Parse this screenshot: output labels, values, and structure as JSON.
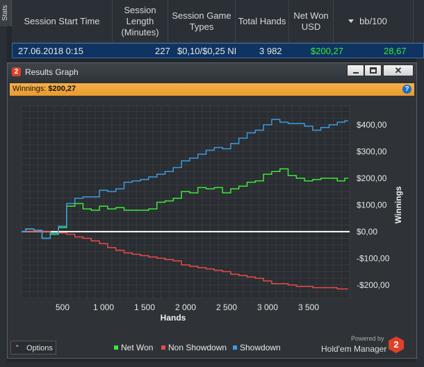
{
  "sidebar_tab": "Stats",
  "table": {
    "columns": [
      {
        "label": "Session Start Time"
      },
      {
        "label": "Session Length (Minutes)"
      },
      {
        "label": "Session Game Types"
      },
      {
        "label": "Total Hands"
      },
      {
        "label": "Net Won USD"
      },
      {
        "label": "bb/100"
      }
    ],
    "selected_row": {
      "start_time": "27.06.2018 0:15",
      "length": "227",
      "game_types": "$0,10/$0,25 NI",
      "total_hands": "3 982",
      "net_won": "$200,27",
      "bb100": "28,67"
    }
  },
  "dialog": {
    "title": "Results Graph",
    "badge": "2",
    "close_glyph": "✕",
    "winnings_label": "Winnings:",
    "winnings_value": "$200,27",
    "help": "?",
    "options_label": "Options",
    "options_chevron": "⌃",
    "powered_by": "Powered by",
    "brand": "Hold'em Manager",
    "brand_badge": "2"
  },
  "colors": {
    "net_won": "#3ee83a",
    "non_showdown": "#e84b4b",
    "showdown": "#3b9be0",
    "zero_line": "#ffffff",
    "accent": "#f0a43a"
  },
  "chart_data": {
    "type": "line",
    "xlabel": "Hands",
    "ylabel": "Winnings",
    "xlim": [
      0,
      4000
    ],
    "ylim": [
      -250,
      470
    ],
    "x_ticks": [
      500,
      1000,
      1500,
      2000,
      2500,
      3000,
      3500
    ],
    "x_tick_labels": [
      "500",
      "1 000",
      "1 500",
      "2 000",
      "2 500",
      "3 000",
      "3 500"
    ],
    "y_ticks": [
      400,
      300,
      200,
      100,
      0,
      -100,
      -200
    ],
    "y_tick_labels": [
      "$400,00",
      "$300,00",
      "$200,00",
      "$100,00",
      "$0,00",
      "-$100,00",
      "-$200,00"
    ],
    "legend_placement": "bottom",
    "grid": true,
    "x": [
      0,
      100,
      200,
      300,
      400,
      500,
      600,
      700,
      800,
      900,
      1000,
      1100,
      1200,
      1300,
      1400,
      1500,
      1600,
      1700,
      1800,
      1900,
      2000,
      2100,
      2200,
      2300,
      2400,
      2500,
      2600,
      2700,
      2800,
      2900,
      3000,
      3100,
      3200,
      3300,
      3400,
      3500,
      3600,
      3700,
      3800,
      3900,
      3982
    ],
    "series": [
      {
        "name": "Net Won",
        "values": [
          0,
          10,
          5,
          -25,
          -10,
          15,
          95,
          105,
          85,
          80,
          95,
          85,
          90,
          80,
          80,
          80,
          85,
          110,
          115,
          125,
          150,
          145,
          165,
          160,
          165,
          145,
          160,
          170,
          185,
          190,
          215,
          225,
          235,
          210,
          200,
          190,
          195,
          200,
          200,
          190,
          200
        ]
      },
      {
        "name": "Non Showdown",
        "values": [
          0,
          0,
          0,
          0,
          -5,
          -5,
          -10,
          -20,
          -25,
          -35,
          -45,
          -60,
          -70,
          -80,
          -85,
          -90,
          -95,
          -100,
          -105,
          -110,
          -125,
          -130,
          -135,
          -140,
          -145,
          -150,
          -160,
          -165,
          -170,
          -175,
          -185,
          -195,
          -195,
          -200,
          -205,
          -205,
          -210,
          -210,
          -210,
          -215,
          -215
        ]
      },
      {
        "name": "Showdown",
        "values": [
          0,
          10,
          5,
          -25,
          -5,
          20,
          105,
          125,
          130,
          130,
          155,
          150,
          160,
          185,
          190,
          195,
          205,
          215,
          225,
          240,
          265,
          275,
          290,
          305,
          315,
          310,
          330,
          350,
          370,
          380,
          400,
          420,
          410,
          405,
          405,
          395,
          380,
          390,
          400,
          410,
          415
        ]
      }
    ]
  }
}
